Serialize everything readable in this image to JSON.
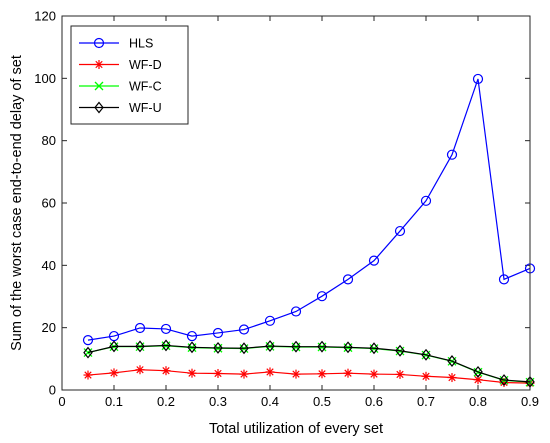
{
  "chart_data": {
    "type": "line",
    "xlabel": "Total utilization of every set",
    "ylabel": "Sum of the worst case end-to-end delay of set",
    "xlim": [
      0,
      0.9
    ],
    "ylim": [
      0,
      120
    ],
    "xticks": [
      "0",
      "0.1",
      "0.2",
      "0.3",
      "0.4",
      "0.5",
      "0.6",
      "0.7",
      "0.8",
      "0.9"
    ],
    "yticks": [
      "0",
      "20",
      "40",
      "60",
      "80",
      "100",
      "120"
    ],
    "grid": false,
    "legend_position": "top-left",
    "x": [
      0.05,
      0.1,
      0.15,
      0.2,
      0.25,
      0.3,
      0.35,
      0.4,
      0.45,
      0.5,
      0.55,
      0.6,
      0.65,
      0.7,
      0.75,
      0.8,
      0.85,
      0.9
    ],
    "series": [
      {
        "name": "HLS",
        "color": "#0000ff",
        "marker": "circle",
        "values": [
          16.0,
          17.3,
          19.9,
          19.6,
          17.3,
          18.3,
          19.4,
          22.2,
          25.2,
          30.1,
          35.5,
          41.5,
          51.0,
          60.7,
          75.5,
          99.8,
          35.5,
          39.0
        ]
      },
      {
        "name": "WF-D",
        "color": "#ff0000",
        "marker": "asterisk",
        "values": [
          4.8,
          5.5,
          6.5,
          6.2,
          5.4,
          5.3,
          5.1,
          5.8,
          5.1,
          5.2,
          5.4,
          5.1,
          5.0,
          4.4,
          4.0,
          3.3,
          2.4,
          2.2
        ]
      },
      {
        "name": "WF-C",
        "color": "#00ff00",
        "marker": "x",
        "values": [
          12.0,
          13.9,
          13.9,
          14.2,
          13.6,
          13.4,
          13.3,
          14.0,
          13.8,
          13.8,
          13.6,
          13.3,
          12.5,
          11.2,
          9.2,
          5.7,
          3.1,
          2.5
        ]
      },
      {
        "name": "WF-U",
        "color": "#000000",
        "marker": "diamond",
        "values": [
          12.0,
          14.0,
          14.0,
          14.3,
          13.7,
          13.5,
          13.4,
          14.1,
          13.9,
          13.9,
          13.7,
          13.4,
          12.6,
          11.3,
          9.3,
          5.8,
          3.2,
          2.6
        ]
      }
    ]
  }
}
